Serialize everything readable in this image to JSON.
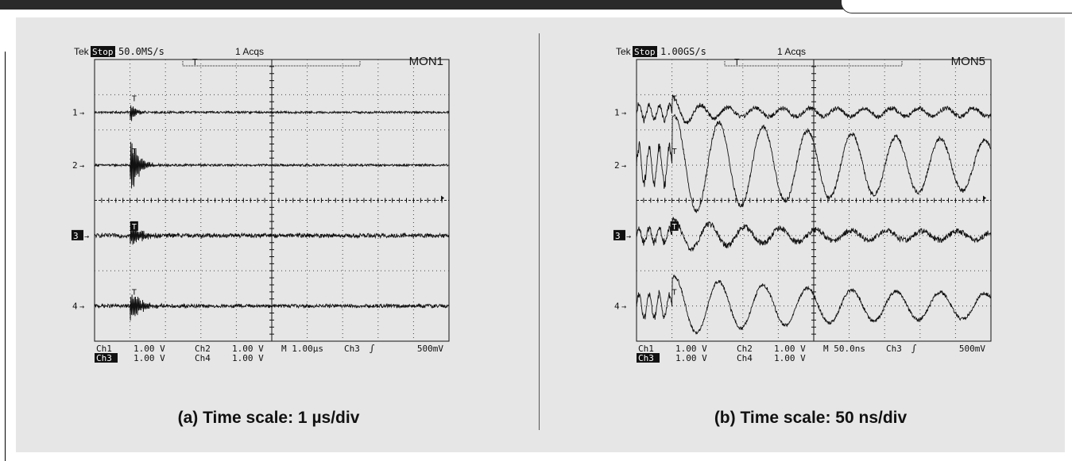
{
  "chart_data": [
    {
      "type": "line",
      "title": "",
      "header": {
        "brand": "Tek",
        "state": "Stop:",
        "rate": "50.0MS/s",
        "acqs": "1 Acqs",
        "mon": "MON1",
        "trigger_marker": "T"
      },
      "channels": [
        "1",
        "2",
        "3",
        "4"
      ],
      "active_channel": "3",
      "footer": {
        "row1": [
          "Ch1",
          "1.00 V",
          "Ch2",
          "1.00 V",
          "M 1.00µs",
          "Ch3",
          "500mV"
        ],
        "row2": [
          "Ch3",
          "1.00 V",
          "Ch4",
          "1.00 V"
        ]
      },
      "x_divisions": 10,
      "y_divisions": 8,
      "event_div": 1.05,
      "series": [
        {
          "baseline": 1.5,
          "noise": 0.03,
          "burst_amp": 0.28,
          "burst_decay": 0.15,
          "cycles_per_div": 30
        },
        {
          "baseline": 3.0,
          "noise": 0.03,
          "burst_amp": 0.85,
          "burst_decay": 0.22,
          "cycles_per_div": 28
        },
        {
          "baseline": 5.0,
          "noise": 0.06,
          "burst_amp": 0.35,
          "burst_decay": 0.3,
          "cycles_per_div": 30
        },
        {
          "baseline": 7.0,
          "noise": 0.05,
          "burst_amp": 0.45,
          "burst_decay": 0.3,
          "cycles_per_div": 30
        }
      ],
      "caption": "(a) Time scale: 1 µs/div"
    },
    {
      "type": "line",
      "title": "",
      "header": {
        "brand": "Tek",
        "state": "Stop:",
        "rate": "1.00GS/s",
        "acqs": "1 Acqs",
        "mon": "MON5",
        "trigger_marker": "T"
      },
      "channels": [
        "1",
        "2",
        "3",
        "4"
      ],
      "active_channel": "3",
      "footer": {
        "row1": [
          "Ch1",
          "1.00 V",
          "Ch2",
          "1.00 V",
          "M 50.0ns",
          "Ch3",
          "500mV"
        ],
        "row2": [
          "Ch3",
          "1.00 V",
          "Ch4",
          "1.00 V"
        ]
      },
      "x_divisions": 10,
      "y_divisions": 8,
      "event_div": 1.0,
      "series": [
        {
          "baseline": 1.5,
          "noise": 0.06,
          "burst_amp": 0.35,
          "burst_decay": 0.6,
          "cycles_per_div": 1.3,
          "tail_amp": 0.12
        },
        {
          "baseline": 3.0,
          "noise": 0.06,
          "burst_amp": 0.9,
          "burst_decay": 6.0,
          "cycles_per_div": 0.8,
          "tail_amp": 0.5
        },
        {
          "baseline": 5.0,
          "noise": 0.08,
          "burst_amp": 0.35,
          "burst_decay": 2.0,
          "cycles_per_div": 1.0,
          "tail_amp": 0.12
        },
        {
          "baseline": 7.0,
          "noise": 0.05,
          "burst_amp": 0.55,
          "burst_decay": 4.0,
          "cycles_per_div": 0.8,
          "tail_amp": 0.3
        }
      ],
      "caption": "(b) Time scale: 50 ns/div"
    }
  ]
}
